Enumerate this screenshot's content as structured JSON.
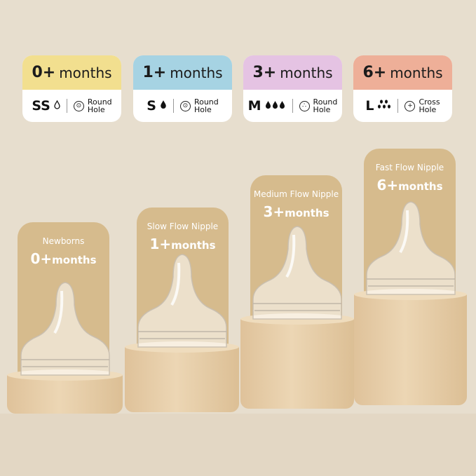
{
  "cards": [
    {
      "age": "0+",
      "unit": "months",
      "size": "SS",
      "drops": "💧",
      "flow_icon": "drop-outline-icon",
      "hole_icon": "⊙",
      "hole_l1": "Round",
      "hole_l2": "Hole",
      "color": "#f2df8f"
    },
    {
      "age": "1+",
      "unit": "months",
      "size": "S",
      "drops": "💧",
      "flow_icon": "drop-icon",
      "hole_icon": "⊙",
      "hole_l1": "Round",
      "hole_l2": "Hole",
      "color": "#a6d3e3"
    },
    {
      "age": "3+",
      "unit": "months",
      "size": "M",
      "drops": "💧💧💧",
      "flow_icon": "three-drops-icon",
      "hole_icon": "∴",
      "hole_l1": "Round",
      "hole_l2": "Hole",
      "color": "#e5c3e3"
    },
    {
      "age": "6+",
      "unit": "months",
      "size": "L",
      "drops": "⁘",
      "flow_icon": "five-drops-icon",
      "hole_icon": "+",
      "hole_l1": "Cross",
      "hole_l2": "Hole",
      "color": "#eeaf98"
    }
  ],
  "stages": [
    {
      "title": "Newborns",
      "age": "0+",
      "unit": "months"
    },
    {
      "title": "Slow Flow Nipple",
      "age": "1+",
      "unit": "months"
    },
    {
      "title": "Medium Flow Nipple",
      "age": "3+",
      "unit": "months"
    },
    {
      "title": "Fast Flow Nipple",
      "age": "6+",
      "unit": "months"
    }
  ]
}
